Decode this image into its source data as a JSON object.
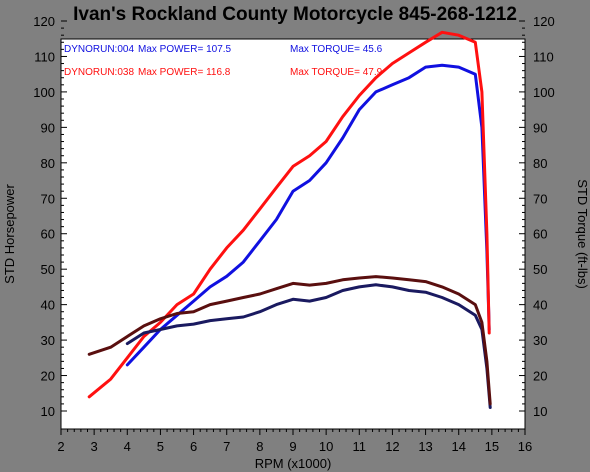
{
  "chart_data": {
    "type": "line",
    "title": "Ivan's Rockland County Motorcycle  845-268-1212",
    "xlabel": "RPM (x1000)",
    "ylabel": "STD Horsepower",
    "ylabel_right": "STD Torque (ft-lbs)",
    "xlim": [
      2,
      16
    ],
    "ylim": [
      10,
      120
    ],
    "x_ticks": [
      "2",
      "3",
      "4",
      "5",
      "6",
      "7",
      "8",
      "9",
      "10",
      "11",
      "12",
      "13",
      "14",
      "15",
      "16"
    ],
    "y_ticks": [
      "10",
      "20",
      "30",
      "40",
      "50",
      "60",
      "70",
      "80",
      "90",
      "100",
      "110",
      "120"
    ],
    "grid": false,
    "legend": [
      {
        "run": "DYNORUN:004",
        "power_label": "Max POWER=",
        "power": "107.5",
        "torque_label": "Max TORQUE=",
        "torque": "45.6",
        "color": "#1010e0"
      },
      {
        "run": "DYNORUN:038",
        "power_label": "Max POWER=",
        "power": "116.8",
        "torque_label": "Max TORQUE=",
        "torque": "47.9",
        "color": "#ff1010"
      }
    ],
    "series": [
      {
        "key": "hp004",
        "color": "#1010e0",
        "points": [
          [
            4,
            23
          ],
          [
            4.5,
            28
          ],
          [
            5,
            33
          ],
          [
            5.5,
            37
          ],
          [
            6,
            41
          ],
          [
            6.5,
            45
          ],
          [
            7,
            48
          ],
          [
            7.5,
            52
          ],
          [
            8,
            58
          ],
          [
            8.5,
            64
          ],
          [
            9,
            72
          ],
          [
            9.5,
            75
          ],
          [
            10,
            80
          ],
          [
            10.5,
            87
          ],
          [
            11,
            95
          ],
          [
            11.5,
            100
          ],
          [
            12,
            102
          ],
          [
            12.5,
            104
          ],
          [
            13,
            107
          ],
          [
            13.5,
            107.5
          ],
          [
            14,
            107
          ],
          [
            14.5,
            105
          ],
          [
            14.7,
            90
          ],
          [
            14.85,
            55
          ],
          [
            14.92,
            33
          ]
        ]
      },
      {
        "key": "hp038",
        "color": "#ff1010",
        "points": [
          [
            2.85,
            14
          ],
          [
            3.5,
            19
          ],
          [
            4,
            25
          ],
          [
            4.5,
            31
          ],
          [
            5,
            35
          ],
          [
            5.5,
            40
          ],
          [
            6,
            43
          ],
          [
            6.5,
            50
          ],
          [
            7,
            56
          ],
          [
            7.5,
            61
          ],
          [
            8,
            67
          ],
          [
            8.5,
            73
          ],
          [
            9,
            79
          ],
          [
            9.5,
            82
          ],
          [
            10,
            86
          ],
          [
            10.5,
            93
          ],
          [
            11,
            99
          ],
          [
            11.5,
            104
          ],
          [
            12,
            108
          ],
          [
            12.5,
            111
          ],
          [
            13,
            114
          ],
          [
            13.5,
            116.8
          ],
          [
            14,
            116
          ],
          [
            14.5,
            114
          ],
          [
            14.7,
            100
          ],
          [
            14.85,
            60
          ],
          [
            14.92,
            32
          ]
        ]
      },
      {
        "key": "tq004",
        "color": "#1a1a60",
        "points": [
          [
            4,
            29
          ],
          [
            4.5,
            32
          ],
          [
            5,
            33
          ],
          [
            5.5,
            34
          ],
          [
            6,
            34.5
          ],
          [
            6.5,
            35.5
          ],
          [
            7,
            36
          ],
          [
            7.5,
            36.5
          ],
          [
            8,
            38
          ],
          [
            8.5,
            40
          ],
          [
            9,
            41.5
          ],
          [
            9.5,
            41
          ],
          [
            10,
            42
          ],
          [
            10.5,
            44
          ],
          [
            11,
            45
          ],
          [
            11.5,
            45.6
          ],
          [
            12,
            45
          ],
          [
            12.5,
            44
          ],
          [
            13,
            43.5
          ],
          [
            13.5,
            42
          ],
          [
            14,
            40
          ],
          [
            14.5,
            37
          ],
          [
            14.7,
            33
          ],
          [
            14.85,
            22
          ],
          [
            14.95,
            11
          ]
        ]
      },
      {
        "key": "tq038",
        "color": "#5a0f0f",
        "points": [
          [
            2.85,
            26
          ],
          [
            3.5,
            28
          ],
          [
            4,
            31
          ],
          [
            4.5,
            34
          ],
          [
            5,
            36
          ],
          [
            5.5,
            37.5
          ],
          [
            6,
            38
          ],
          [
            6.5,
            40
          ],
          [
            7,
            41
          ],
          [
            7.5,
            42
          ],
          [
            8,
            43
          ],
          [
            8.5,
            44.5
          ],
          [
            9,
            46
          ],
          [
            9.5,
            45.5
          ],
          [
            10,
            46
          ],
          [
            10.5,
            47
          ],
          [
            11,
            47.5
          ],
          [
            11.5,
            47.9
          ],
          [
            12,
            47.5
          ],
          [
            12.5,
            47
          ],
          [
            13,
            46.5
          ],
          [
            13.5,
            45
          ],
          [
            14,
            43
          ],
          [
            14.5,
            40
          ],
          [
            14.7,
            35
          ],
          [
            14.85,
            24
          ],
          [
            14.95,
            12
          ]
        ]
      }
    ]
  }
}
